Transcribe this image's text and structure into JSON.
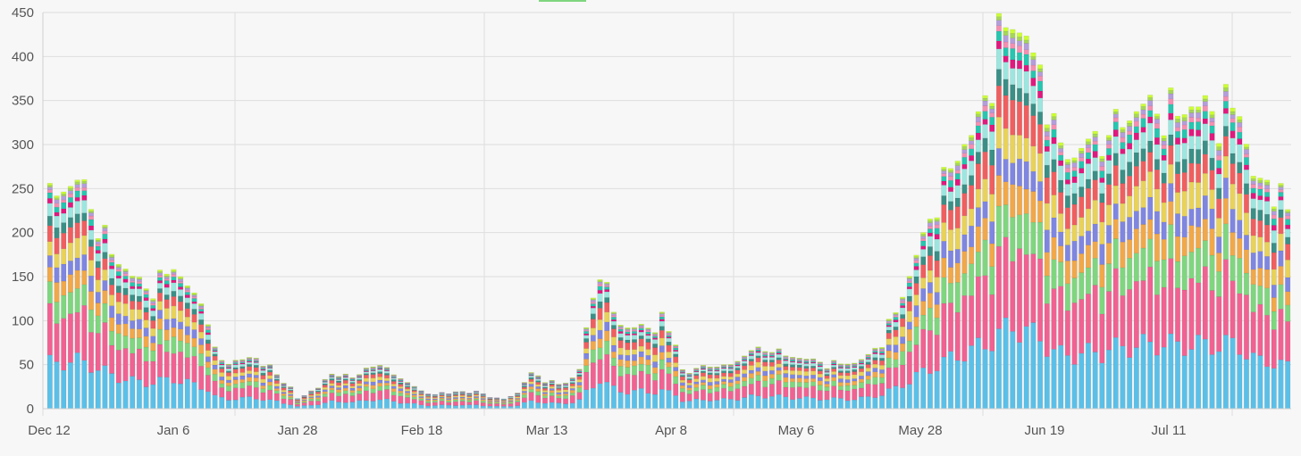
{
  "chart_data": {
    "type": "bar",
    "stacked": true,
    "ylim": [
      0,
      450
    ],
    "y_ticks": [
      0,
      50,
      100,
      150,
      200,
      250,
      300,
      350,
      400,
      450
    ],
    "x_tick_labels": [
      "Dec 12",
      "Jan 6",
      "Jan 28",
      "Feb 18",
      "Mar 13",
      "Apr 8",
      "May 6",
      "May 28",
      "Jun 19",
      "Jul 11"
    ],
    "grid": true,
    "legend_placement": "top",
    "series_colors": [
      "#5bc0e8",
      "#f06292",
      "#7fd67f",
      "#f0a84a",
      "#7f86e0",
      "#e8d25a",
      "#ef5f5f",
      "#3a8f86",
      "#9de6e0",
      "#e0197e",
      "#26c6b0",
      "#f48fb1",
      "#b39ddb",
      "#a5d65a",
      "#ccff33"
    ],
    "series_shares": [
      0.21,
      0.21,
      0.1,
      0.075,
      0.065,
      0.075,
      0.075,
      0.04,
      0.05,
      0.02,
      0.025,
      0.015,
      0.015,
      0.01,
      0.01
    ],
    "totals": [
      245,
      250,
      252,
      254,
      256,
      252,
      236,
      215,
      198,
      180,
      168,
      160,
      150,
      145,
      140,
      142,
      148,
      155,
      162,
      150,
      140,
      128,
      120,
      105,
      65,
      55,
      52,
      55,
      56,
      57,
      57,
      52,
      45,
      38,
      30,
      25,
      12,
      15,
      20,
      25,
      30,
      38,
      38,
      40,
      35,
      38,
      45,
      50,
      48,
      45,
      40,
      35,
      30,
      25,
      20,
      18,
      18,
      18,
      18,
      20,
      20,
      18,
      20,
      18,
      15,
      12,
      12,
      15,
      18,
      30,
      40,
      38,
      33,
      30,
      28,
      30,
      35,
      45,
      90,
      125,
      158,
      130,
      108,
      98,
      92,
      92,
      94,
      90,
      92,
      98,
      85,
      75,
      45,
      40,
      45,
      48,
      50,
      45,
      48,
      52,
      55,
      60,
      65,
      68,
      68,
      68,
      65,
      62,
      60,
      58,
      56,
      55,
      55,
      52,
      52,
      52,
      52,
      52,
      56,
      60,
      70,
      78,
      95,
      110,
      130,
      150,
      175,
      195,
      215,
      235,
      250,
      270,
      290,
      300,
      310,
      330,
      350,
      370,
      400,
      420,
      445,
      430,
      420,
      395,
      380,
      340,
      310,
      290,
      293,
      290,
      295,
      300,
      305,
      300,
      320,
      325,
      330,
      335,
      340,
      342,
      345,
      348,
      350,
      345,
      340,
      342,
      345,
      342,
      345,
      345,
      340,
      345,
      345,
      340,
      300,
      265,
      255,
      260,
      250,
      235,
      225
    ]
  }
}
